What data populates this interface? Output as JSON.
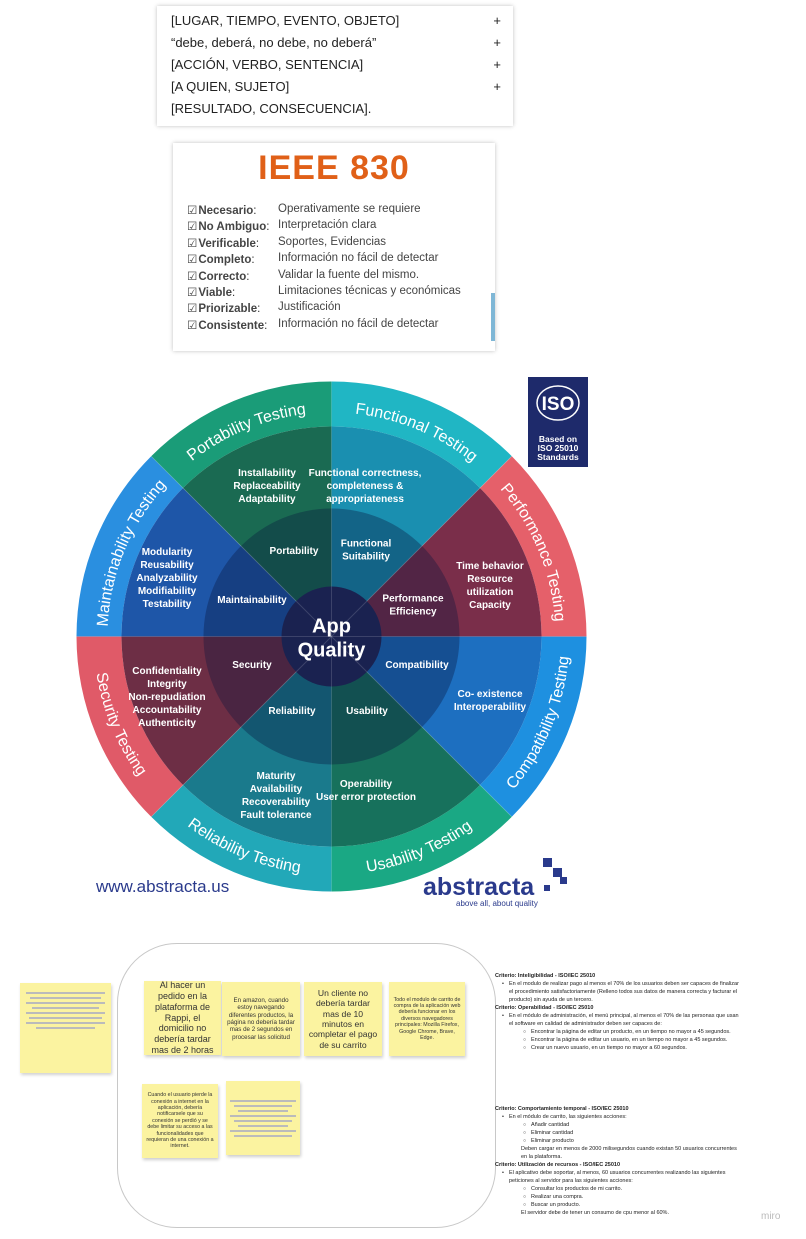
{
  "template_card": {
    "rows": [
      {
        "text": "[LUGAR, TIEMPO, EVENTO, OBJETO]",
        "plus": "+"
      },
      {
        "text": "“debe, deberá, no debe, no deberá”",
        "plus": "+"
      },
      {
        "text": "[ACCIÓN, VERBO, SENTENCIA]",
        "plus": "+"
      },
      {
        "text": "[A QUIEN, SUJETO]",
        "plus": "+"
      },
      {
        "text": "[RESULTADO, CONSECUENCIA].",
        "plus": ""
      }
    ]
  },
  "ieee": {
    "title": "IEEE 830",
    "criteria": [
      {
        "key": "Necesario",
        "value": "Operativamente se requiere"
      },
      {
        "key": "No Ambiguo",
        "value": "Interpretación clara"
      },
      {
        "key": "Verificable",
        "value": "Soportes, Evidencias"
      },
      {
        "key": "Completo",
        "value": "Información no fácil de detectar"
      },
      {
        "key": "Correcto",
        "value": "Validar la fuente del mismo."
      },
      {
        "key": "Viable",
        "value": "Limitaciones técnicas y económicas"
      },
      {
        "key": "Priorizable",
        "value": "Justificación"
      },
      {
        "key": "Consistente",
        "value": "Información no fácil de detectar"
      }
    ]
  },
  "wheel": {
    "center": [
      "App",
      "Quality"
    ],
    "rings": {
      "outer": [
        "Functional Testing",
        "Performance Testing",
        "Compatibility Testing",
        "Usability Testing",
        "Reliability Testing",
        "Security Testing",
        "Maintainability Testing",
        "Portability Testing"
      ],
      "inner": [
        "Functional Suitability",
        "Performance Efficiency",
        "Compatibility",
        "Usability",
        "Reliability",
        "Security",
        "Maintainability",
        "Portability"
      ]
    },
    "sub": {
      "functional": [
        "Functional correctness,",
        "completeness &",
        "appropriateness"
      ],
      "performance": [
        "Time behavior",
        "Resource",
        "utilization",
        "Capacity"
      ],
      "compatibility": [
        "Co- existence",
        "Interoperability"
      ],
      "usability": [
        "Operability",
        "User error protection"
      ],
      "reliability": [
        "Maturity",
        "Availability",
        "Recoverability",
        "Fault tolerance"
      ],
      "security": [
        "Confidentiality",
        "Integrity",
        "Non-repudiation",
        "Accountability",
        "Authenticity"
      ],
      "maintainability": [
        "Modularity",
        "Reusability",
        "Analyzability",
        "Modifiability",
        "Testability"
      ],
      "portability": [
        "Installability",
        "Replaceability",
        "Adaptability"
      ]
    },
    "colors": {
      "functional": "#1a8fb0",
      "performance": "#7a2e4a",
      "compatibility": "#1d6fc0",
      "usability": "#17715c",
      "reliability": "#1a7a8c",
      "security": "#6d2e45",
      "maintainability": "#1e56a8",
      "portability": "#1a6a52"
    },
    "iso_badge": {
      "logo": "ISO",
      "lines": [
        "Based on",
        "ISO 25010",
        "Standards"
      ]
    },
    "website": "www.abstracta.us",
    "brand": "abstracta",
    "tagline": "above all, about quality"
  },
  "stickies": {
    "lone_note": "",
    "frame_notes": [
      {
        "text": "Al hacer un pedido en la plataforma de Rappi, el domicilio no debería tardar mas de 2 horas",
        "size": 9
      },
      {
        "text": "En amazon, cuando estoy navegando diferentes productos, la página no debería tardar mas de 2 segundos en procesar las solicitud",
        "size": 6.2
      },
      {
        "text": "Un cliente no debería tardar mas de 10 minutos en completar el pago de su carrito",
        "size": 8.6
      },
      {
        "text": "Todo el modulo de carrito de compra de la aplicación web debería funcionar en los diversos navegadores principales: Mozilla Firefox, Google Chrome, Brave, Edge.",
        "size": 5.3
      },
      {
        "text": "Cuando el usuario pierde la conexión a internet en la aplicación, debería notificarsele que su conexión se perdió y se debe limitar su acceso a las funcionalidades que requieran de una conexión a internet.",
        "size": 5.3
      },
      {
        "text": "",
        "size": 3
      }
    ]
  },
  "docs": {
    "doc1": {
      "lines": [
        {
          "lvl": "t",
          "text": "Criterio: Inteligibilidad - ISO/IEC 25010"
        },
        {
          "lvl": "1",
          "text": "En el modulo de realizar pago al menos el 70% de los usuarios deben ser capaces de finalizar el procedimiento satisfactoriamente (Relleno todos sus datos de manera correcta y facturar el producto) sin ayuda de un tercero."
        },
        {
          "lvl": "t",
          "text": "Criterio: Operabilidad - ISO/IEC 25010"
        },
        {
          "lvl": "1",
          "text": "En el módulo de administración, el menú principal, al menos el 70% de las personas que usan el software en calidad de administrador deben ser capaces de:"
        },
        {
          "lvl": "2",
          "text": "Encontrar la página de editar un producto, en un tiempo no mayor a 45 segundos."
        },
        {
          "lvl": "2",
          "text": "Encontrar la página de editar un usuario, en un tiempo no mayor a 45 segundos."
        },
        {
          "lvl": "2",
          "text": "Crear un nuevo usuario, en un tiempo no mayor a 60 segundos."
        }
      ]
    },
    "doc2": {
      "lines": [
        {
          "lvl": "t",
          "text": "Criterio: Comportamiento temporal - ISO/IEC 25010"
        },
        {
          "lvl": "1",
          "text": "En el módulo de carrito, las siguientes acciones:"
        },
        {
          "lvl": "2",
          "text": "Añadir cantidad"
        },
        {
          "lvl": "2",
          "text": "Eliminar cantidad"
        },
        {
          "lvl": "2",
          "text": "Eliminar producto"
        },
        {
          "lvl": "0",
          "text": "Deben cargar en menos de 2000 milisegundos cuando existan 50 usuarios concurrentes en la plataforma."
        },
        {
          "lvl": "t",
          "text": "Criterio: Utilización de recursos - ISO/IEC 25010"
        },
        {
          "lvl": "1",
          "text": "El aplicativo debe soportar, al menos, 60 usuarios concurrentes realizando las siguientes peticiones al servidor para las siguientes acciones:"
        },
        {
          "lvl": "2",
          "text": "Consultar los productos de mi carrito."
        },
        {
          "lvl": "2",
          "text": "Realizar una compra."
        },
        {
          "lvl": "2",
          "text": "Buscar un producto."
        },
        {
          "lvl": "0",
          "text": "El servidor debe de tener un consumo de cpu menor al 60%."
        }
      ]
    }
  },
  "watermark": "miro"
}
